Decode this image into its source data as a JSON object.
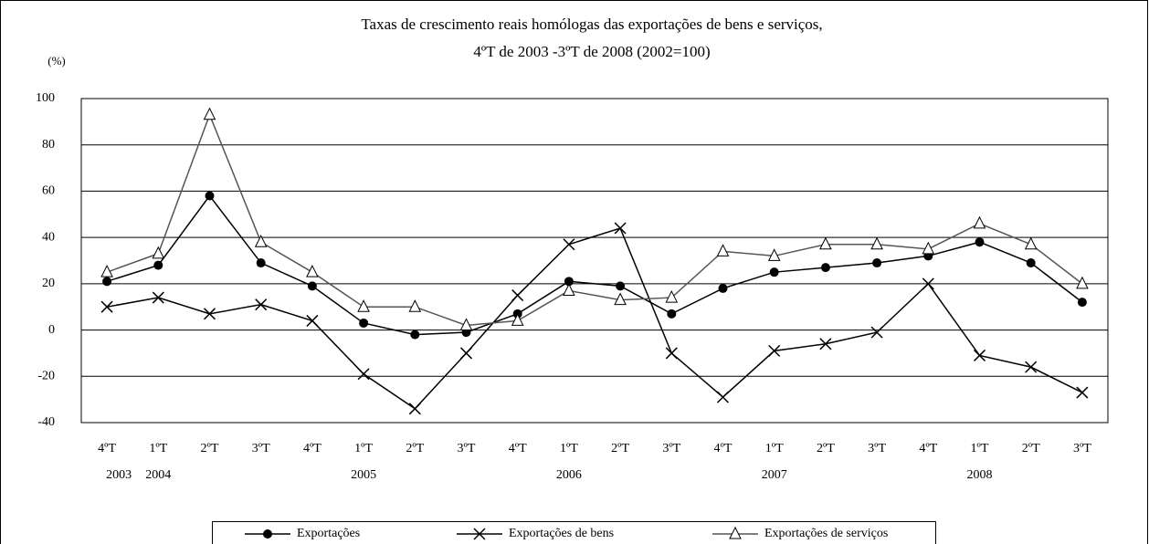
{
  "chart_data": {
    "type": "line",
    "title": [
      "Taxas de crescimento reais homólogas das exportações de bens e serviços,",
      "4ºT de 2003 -3ºT de 2008 (2002=100)"
    ],
    "y_label": "(%)",
    "categories": [
      "4ºT",
      "1ºT",
      "2ºT",
      "3ºT",
      "4ºT",
      "1ºT",
      "2ºT",
      "3ºT",
      "4ºT",
      "1ºT",
      "2ºT",
      "3ºT",
      "4ºT",
      "1ºT",
      "2ºT",
      "3ºT",
      "4ºT",
      "1ºT",
      "2ºT",
      "3ºT"
    ],
    "year_labels": [
      "2003",
      "2004",
      null,
      null,
      null,
      "2005",
      null,
      null,
      null,
      "2006",
      null,
      null,
      null,
      "2007",
      null,
      null,
      null,
      "2008",
      null,
      null
    ],
    "series": [
      {
        "name": "Exportações",
        "color": "#000000",
        "marker": "circle",
        "values": [
          21,
          28,
          58,
          29,
          19,
          3,
          -2,
          -1,
          7,
          21,
          19,
          7,
          18,
          25,
          27,
          29,
          32,
          38,
          29,
          12
        ]
      },
      {
        "name": "Exportações de bens",
        "color": "#000000",
        "marker": "cross",
        "values": [
          10,
          14,
          7,
          11,
          4,
          -19,
          -34,
          -10,
          15,
          37,
          44,
          -10,
          -29,
          -9,
          -6,
          -1,
          20,
          -11,
          -16,
          -27
        ]
      },
      {
        "name": "Exportações de serviços",
        "color": "#555555",
        "marker": "triangle",
        "values": [
          25,
          33,
          93,
          38,
          25,
          10,
          10,
          2,
          4,
          17,
          13,
          14,
          34,
          32,
          37,
          37,
          35,
          46,
          37,
          20
        ]
      }
    ],
    "ylim": [
      -40,
      100
    ],
    "yticks": [
      -40,
      -20,
      0,
      20,
      40,
      60,
      80,
      100
    ],
    "grid": true,
    "legend": "bottom"
  }
}
